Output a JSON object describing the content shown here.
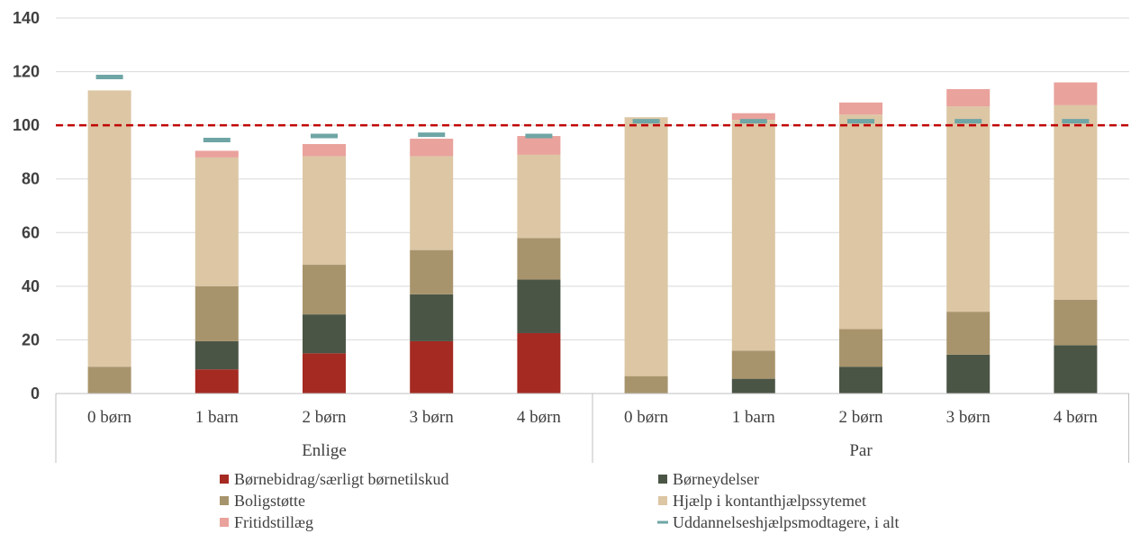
{
  "chart_data": {
    "type": "bar",
    "stacked": true,
    "groups": [
      {
        "label": "Enlige",
        "categories": [
          "0 børn",
          "1 barn",
          "2 børn",
          "3 børn",
          "4 børn"
        ]
      },
      {
        "label": "Par",
        "categories": [
          "0 børn",
          "1 barn",
          "2 børn",
          "3 børn",
          "4 børn"
        ]
      }
    ],
    "ylim": [
      0,
      140
    ],
    "yticks": [
      "0",
      "20",
      "40",
      "60",
      "80",
      "100",
      "120",
      "140"
    ],
    "grid": true,
    "reference_line": {
      "value": 100,
      "style": "dashed",
      "color": "#c00000"
    },
    "series": [
      {
        "name": "Børnebidrag/særligt børnetilskud",
        "color": "#a52a22",
        "values": [
          0,
          9,
          15,
          19.5,
          22.5,
          0,
          0,
          0,
          0,
          0
        ]
      },
      {
        "name": "Børneydelser",
        "color": "#4b5545",
        "values": [
          0,
          10.5,
          14.5,
          17.5,
          20,
          0,
          5.5,
          10,
          14.5,
          18
        ]
      },
      {
        "name": "Boligstøtte",
        "color": "#a8946c",
        "values": [
          10,
          20.5,
          18.5,
          16.5,
          15.5,
          6.5,
          10.5,
          14,
          16,
          17
        ]
      },
      {
        "name": "Hjælp i kontanthjælpssytemet",
        "color": "#dcc6a4",
        "values": [
          103,
          48,
          40.5,
          35,
          31,
          96.5,
          86,
          80,
          76.5,
          72.5
        ]
      },
      {
        "name": "Fritidstillæg",
        "color": "#e9a29c",
        "values": [
          0,
          2.5,
          4.5,
          6.5,
          7,
          0,
          2.5,
          4.5,
          6.5,
          8.5
        ]
      }
    ],
    "marker_series": {
      "name": "Uddannelseshjælpsmodtagere, i alt",
      "color": "#6fa5a5",
      "values": [
        118,
        94.5,
        96,
        96.5,
        96,
        101.5,
        101.5,
        101.5,
        101.5,
        101.5
      ]
    },
    "legend_position": "bottom"
  }
}
